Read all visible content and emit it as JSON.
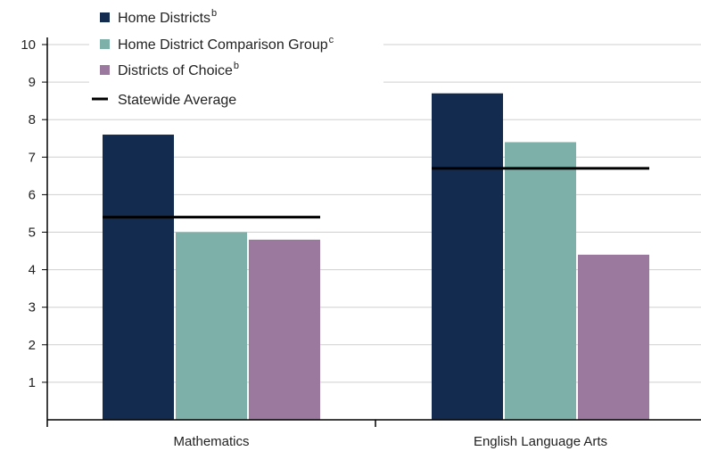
{
  "chart_data": {
    "type": "bar",
    "categories": [
      "Mathematics",
      "English Language Arts"
    ],
    "series": [
      {
        "name": "Home Districts",
        "superscript": "b",
        "color": "#132b4f",
        "values": [
          7.6,
          8.7
        ]
      },
      {
        "name": "Home District Comparison Group",
        "superscript": "c",
        "color": "#7eb0aa",
        "values": [
          5.0,
          7.4
        ]
      },
      {
        "name": "Districts of Choice",
        "superscript": "b",
        "color": "#9b789d",
        "values": [
          4.8,
          4.4
        ]
      }
    ],
    "reference_line": {
      "name": "Statewide Average",
      "color": "#000000",
      "values": [
        5.4,
        6.7
      ]
    },
    "ylim": [
      0,
      10
    ],
    "yticks": [
      1,
      2,
      3,
      4,
      5,
      6,
      7,
      8,
      9,
      10
    ],
    "grid": true,
    "legend": "top-left"
  }
}
